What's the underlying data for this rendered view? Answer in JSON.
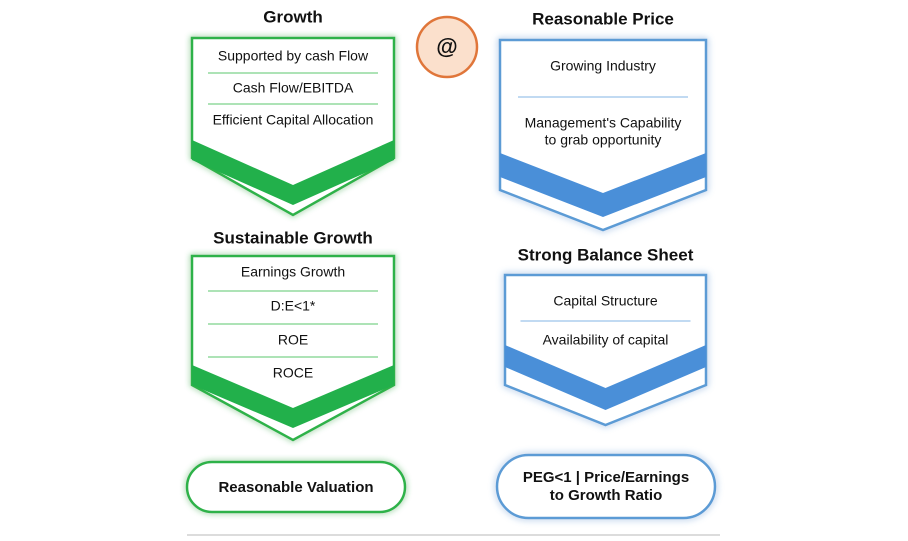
{
  "panels": [
    {
      "title": "Growth",
      "items": [
        [
          "Supported by cash Flow"
        ],
        [
          "Cash Flow/EBITDA"
        ],
        [
          "Efficient Capital Allocation"
        ]
      ]
    },
    {
      "title": "Reasonable Price",
      "items": [
        [
          "Growing Industry"
        ],
        [
          "Management's Capability",
          "to grab opportunity"
        ]
      ]
    },
    {
      "title": "Sustainable Growth",
      "items": [
        [
          "Earnings Growth"
        ],
        [
          "D:E<1*"
        ],
        [
          "ROE"
        ],
        [
          "ROCE"
        ]
      ]
    },
    {
      "title": "Strong Balance Sheet",
      "items": [
        [
          "Capital Structure"
        ],
        [
          "Availability of capital"
        ]
      ]
    }
  ],
  "connector": "@",
  "outcomes": [
    [
      "Reasonable Valuation"
    ],
    [
      "PEG<1 | Price/Earnings",
      "to Growth Ratio"
    ]
  ]
}
